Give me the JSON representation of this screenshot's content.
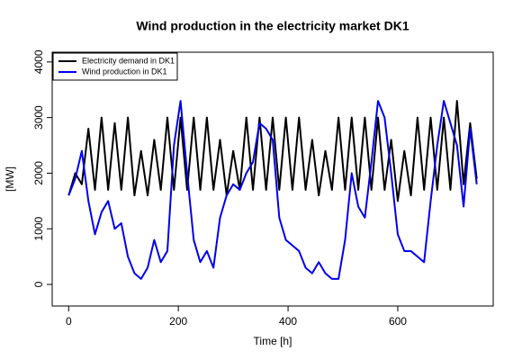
{
  "chart_data": {
    "type": "line",
    "title": "Wind production in the electricity market DK1",
    "x_label": "Time [h]",
    "y_label": "[MW]",
    "x": [
      0,
      12,
      24,
      36,
      48,
      60,
      72,
      84,
      96,
      108,
      120,
      132,
      144,
      156,
      168,
      180,
      192,
      204,
      216,
      228,
      240,
      252,
      264,
      276,
      288,
      300,
      312,
      324,
      336,
      348,
      360,
      372,
      384,
      396,
      408,
      420,
      432,
      444,
      456,
      468,
      480,
      492,
      504,
      516,
      528,
      540,
      552,
      564,
      576,
      588,
      600,
      612,
      624,
      636,
      648,
      660,
      672,
      684,
      696,
      708,
      720,
      732,
      744
    ],
    "series": [
      {
        "name": "Electricity demand in DK1",
        "color": "#000000",
        "values": [
          1600,
          2000,
          1800,
          2800,
          1700,
          3000,
          1700,
          2900,
          1700,
          3000,
          1600,
          2400,
          1600,
          2600,
          1700,
          3000,
          1700,
          3000,
          1700,
          3000,
          1700,
          3000,
          1700,
          2600,
          1600,
          2400,
          1700,
          3000,
          1700,
          3000,
          1700,
          3000,
          1700,
          3000,
          1700,
          3000,
          1700,
          2600,
          1600,
          2400,
          1700,
          3000,
          1700,
          3000,
          1700,
          3000,
          1700,
          3000,
          1700,
          2600,
          1500,
          2400,
          1600,
          3000,
          1700,
          3000,
          1700,
          3000,
          1700,
          3300,
          1800,
          2900,
          1900
        ]
      },
      {
        "name": "Wind production in DK1",
        "color": "#0000ee",
        "values": [
          1600,
          1900,
          2400,
          1500,
          900,
          1300,
          1500,
          1000,
          1100,
          500,
          200,
          100,
          300,
          800,
          400,
          600,
          2500,
          3300,
          2000,
          800,
          400,
          600,
          300,
          1200,
          1600,
          1800,
          1700,
          2000,
          2200,
          2900,
          2800,
          2600,
          1200,
          800,
          700,
          600,
          300,
          200,
          400,
          200,
          100,
          100,
          800,
          2000,
          1400,
          1200,
          2200,
          3300,
          3000,
          2000,
          900,
          600,
          600,
          500,
          400,
          1500,
          2500,
          3300,
          2900,
          2500,
          1400,
          2800,
          1800
        ]
      }
    ],
    "xlim": [
      -30,
      774
    ],
    "ylim": [
      -388,
      4175
    ],
    "xticks": [
      0,
      200,
      400,
      600
    ],
    "yticks": [
      0,
      1000,
      2000,
      3000,
      4000
    ],
    "legend": "top-left"
  }
}
